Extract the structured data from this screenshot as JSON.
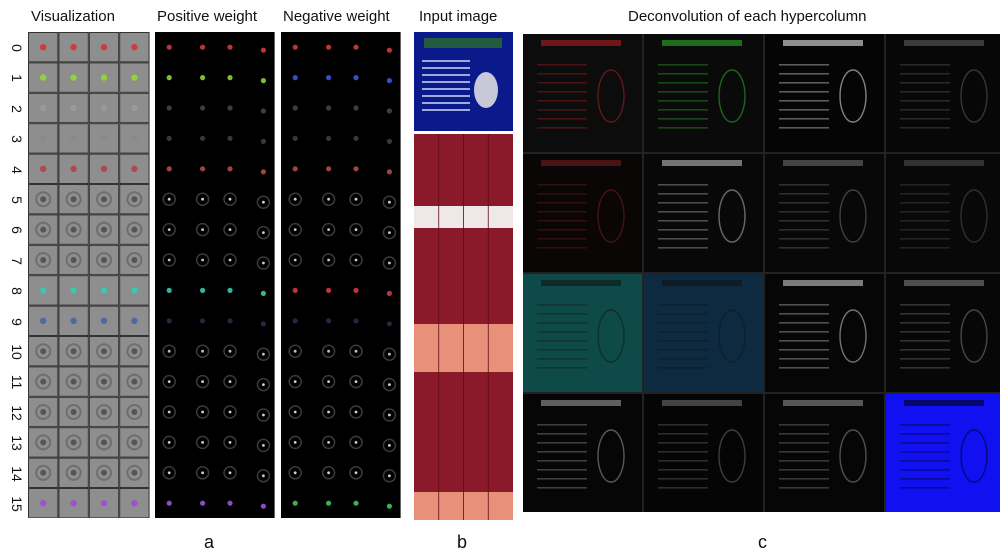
{
  "headers": {
    "visualization": "Visualization",
    "positive": "Positive weight",
    "negative": "Negative weight",
    "input": "Input image",
    "deconv": "Deconvolution of each hypercolumn"
  },
  "sublabels": {
    "a": "a",
    "b": "b",
    "c": "c"
  },
  "row_labels": [
    "0",
    "1",
    "2",
    "3",
    "4",
    "5",
    "6",
    "7",
    "8",
    "9",
    "10",
    "11",
    "12",
    "13",
    "14",
    "15"
  ],
  "row_colors": [
    "#d23a3a",
    "#8fd23a",
    "#9a9a9a",
    "#8a8a8a",
    "#b04a4a",
    "#cfcfcf",
    "#c8c8c8",
    "#c8c8c8",
    "#3ac8b0",
    "#4a6aa0",
    "#c0c0c0",
    "#d0d0d0",
    "#d0d0d0",
    "#d0d0d0",
    "#d0d0d0",
    "#a050d8"
  ],
  "neg_colors": [
    "#d23a3a",
    "#3a5ad8",
    "#9a9a9a",
    "#8a8a8a",
    "#b04a4a",
    "#cfcfcf",
    "#c8c8c8",
    "#c8c8c8",
    "#d23a3a",
    "#4a6aa0",
    "#c0c0c0",
    "#d0d0d0",
    "#d0d0d0",
    "#d0d0d0",
    "#d0d0d0",
    "#3ac85a"
  ],
  "deconv_tiles": [
    {
      "color": "#0c0c0c",
      "accent": "#c02020"
    },
    {
      "color": "#0a0a0a",
      "accent": "#30c030"
    },
    {
      "color": "#050505",
      "accent": "#ffffff"
    },
    {
      "color": "#070707",
      "accent": "#666666"
    },
    {
      "color": "#0a0606",
      "accent": "#802020"
    },
    {
      "color": "#080808",
      "accent": "#cccccc"
    },
    {
      "color": "#080808",
      "accent": "#777777"
    },
    {
      "color": "#080808",
      "accent": "#555555"
    },
    {
      "color": "#0e4a48",
      "accent": "#111111"
    },
    {
      "color": "#0e2a40",
      "accent": "#111111"
    },
    {
      "color": "#060606",
      "accent": "#dddddd"
    },
    {
      "color": "#070707",
      "accent": "#888888"
    },
    {
      "color": "#060606",
      "accent": "#aaaaaa"
    },
    {
      "color": "#050505",
      "accent": "#777777"
    },
    {
      "color": "#060606",
      "accent": "#999999"
    },
    {
      "color": "#1010f0",
      "accent": "#000000"
    }
  ]
}
